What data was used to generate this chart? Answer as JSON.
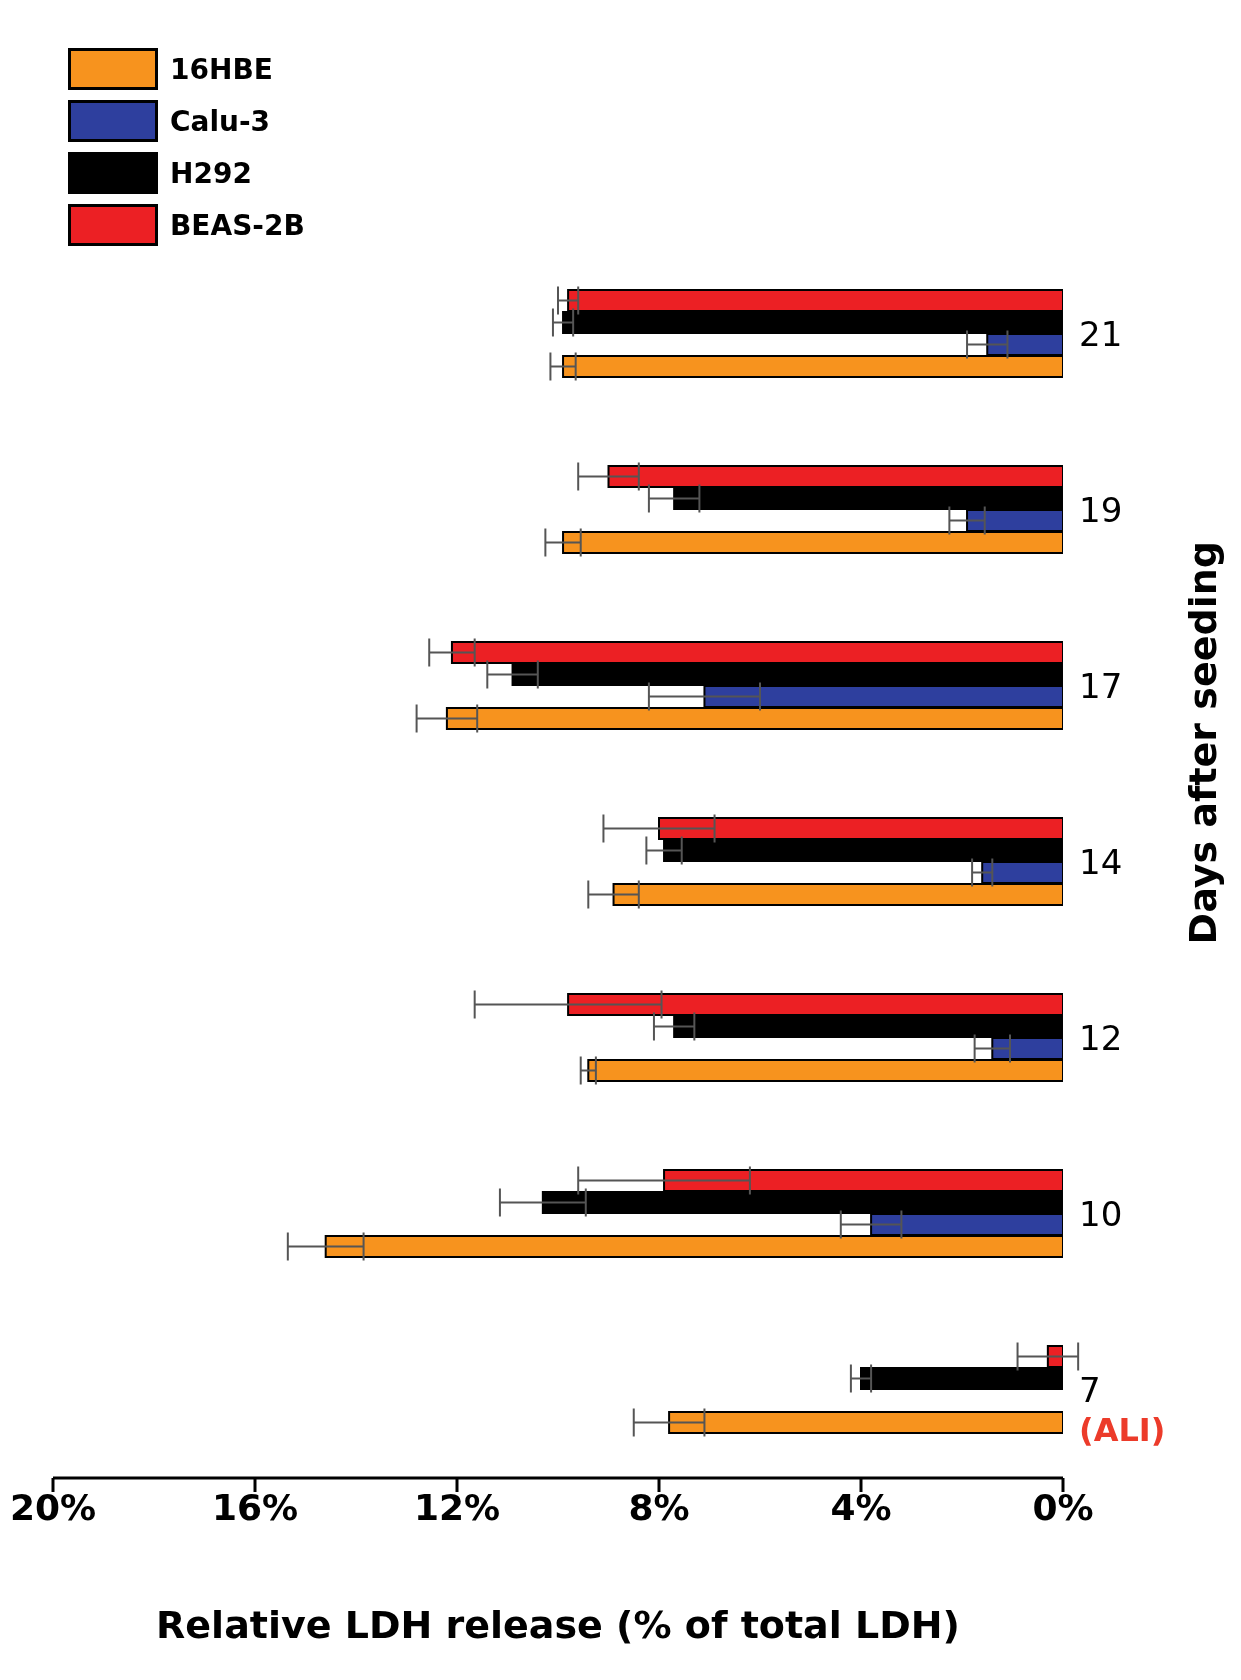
{
  "chart_data": {
    "type": "bar",
    "orientation": "horizontal",
    "xlabel": "Relative LDH release (% of total LDH)",
    "ylabel": "Days after seeding",
    "categories": [
      "21",
      "19",
      "17",
      "14",
      "12",
      "10",
      "7"
    ],
    "series": [
      {
        "name": "16HBE",
        "color": "#f7931e",
        "values": [
          9.9,
          9.9,
          12.2,
          8.9,
          9.4,
          14.6,
          7.8
        ],
        "errors": [
          0.25,
          0.35,
          0.6,
          0.5,
          0.15,
          0.75,
          0.7
        ]
      },
      {
        "name": "Calu-3",
        "color": "#2e3f9e",
        "values": [
          1.5,
          1.9,
          7.1,
          1.6,
          1.4,
          3.8,
          null
        ],
        "errors": [
          0.4,
          0.35,
          1.1,
          0.2,
          0.35,
          0.6,
          null
        ]
      },
      {
        "name": "H292",
        "color": "#000000",
        "values": [
          9.9,
          7.7,
          10.9,
          7.9,
          7.7,
          10.3,
          4.0
        ],
        "errors": [
          0.2,
          0.5,
          0.5,
          0.35,
          0.4,
          0.85,
          0.2
        ]
      },
      {
        "name": "BEAS-2B",
        "color": "#ec2024",
        "values": [
          9.8,
          9.0,
          12.1,
          8.0,
          9.8,
          7.9,
          0.3
        ],
        "errors": [
          0.2,
          0.6,
          0.45,
          1.1,
          1.85,
          1.7,
          0.6
        ]
      }
    ],
    "xlim": [
      20,
      0
    ],
    "xticks": [
      {
        "value": 20,
        "label": "20%"
      },
      {
        "value": 16,
        "label": "16%"
      },
      {
        "value": 12,
        "label": "12%"
      },
      {
        "value": 8,
        "label": "8%"
      },
      {
        "value": 4,
        "label": "4%"
      },
      {
        "value": 0,
        "label": "0%"
      }
    ],
    "annotations": [
      "(ALI)"
    ],
    "legend": "top left",
    "grid": false
  }
}
